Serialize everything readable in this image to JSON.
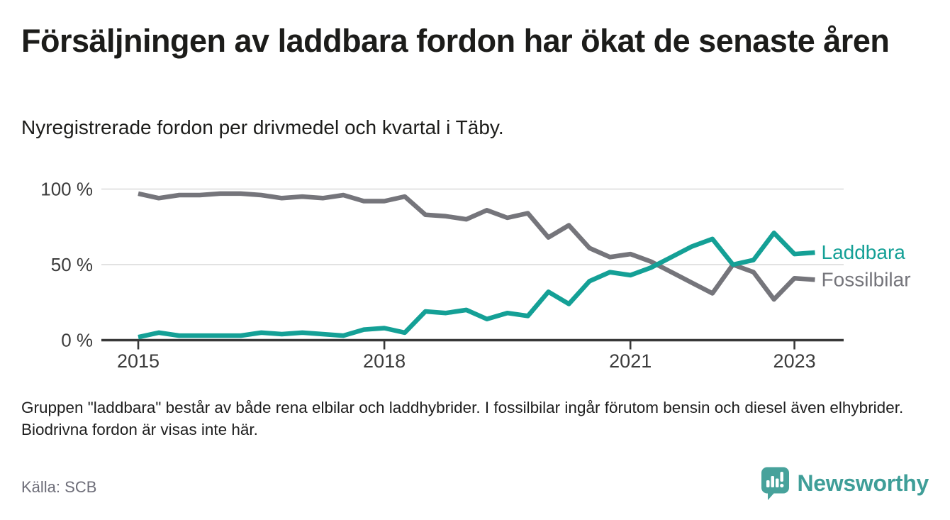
{
  "header": {
    "title": "Försäljningen av laddbara fordon har ökat de senaste åren",
    "subtitle": "Nyregistrerade fordon per drivmedel och kvartal i Täby."
  },
  "chart_data": {
    "type": "line",
    "title": "Försäljningen av laddbara fordon har ökat de senaste åren",
    "xlabel": "",
    "ylabel": "",
    "unit": "%",
    "grid": "horizontal",
    "legend_position": "right-end-of-line",
    "ylim": [
      0,
      100
    ],
    "xlim": [
      2015.0,
      2023.6
    ],
    "yticks": [
      {
        "value": 0,
        "label": "0 %"
      },
      {
        "value": 50,
        "label": "50 %"
      },
      {
        "value": 100,
        "label": "100 %"
      }
    ],
    "xticks": [
      {
        "value": 2015,
        "label": "2015"
      },
      {
        "value": 2018,
        "label": "2018"
      },
      {
        "value": 2021,
        "label": "2021"
      },
      {
        "value": 2023,
        "label": "2023"
      }
    ],
    "x_start": 2015.0,
    "x_step": 0.25,
    "quarters": [
      "2015-Q1",
      "2015-Q2",
      "2015-Q3",
      "2015-Q4",
      "2016-Q1",
      "2016-Q2",
      "2016-Q3",
      "2016-Q4",
      "2017-Q1",
      "2017-Q2",
      "2017-Q3",
      "2017-Q4",
      "2018-Q1",
      "2018-Q2",
      "2018-Q3",
      "2018-Q4",
      "2019-Q1",
      "2019-Q2",
      "2019-Q3",
      "2019-Q4",
      "2020-Q1",
      "2020-Q2",
      "2020-Q3",
      "2020-Q4",
      "2021-Q1",
      "2021-Q2",
      "2021-Q3",
      "2021-Q4",
      "2022-Q1",
      "2022-Q2",
      "2022-Q3",
      "2022-Q4",
      "2023-Q1",
      "2023-Q2"
    ],
    "series": [
      {
        "name": "Fossilbilar",
        "color": "#75757b",
        "values": [
          97,
          94,
          96,
          96,
          97,
          97,
          96,
          94,
          95,
          94,
          96,
          92,
          92,
          95,
          83,
          82,
          80,
          86,
          81,
          84,
          68,
          76,
          61,
          55,
          57,
          52,
          45,
          38,
          31,
          50,
          45,
          27,
          41,
          40
        ]
      },
      {
        "name": "Laddbara",
        "color": "#14a096",
        "values": [
          2,
          5,
          3,
          3,
          3,
          3,
          5,
          4,
          5,
          4,
          3,
          7,
          8,
          5,
          19,
          18,
          20,
          14,
          18,
          16,
          32,
          24,
          39,
          45,
          43,
          48,
          55,
          62,
          67,
          50,
          53,
          71,
          57,
          58
        ]
      }
    ],
    "colors": {
      "grid": "#d9d9d9",
      "axis": "#383838",
      "tick_text": "#3c3c3c"
    }
  },
  "footnote": "Gruppen \"laddbara\" består av både rena elbilar och laddhybrider. I fossilbilar ingår förutom bensin och diesel även elhybrider. Biodrivna fordon är visas inte här.",
  "source": "Källa: SCB",
  "branding": {
    "name": "Newsworthy",
    "logo_icon": "newsworthy-speech-bubble-bar-chart-icon",
    "color": "#3f9e98"
  }
}
